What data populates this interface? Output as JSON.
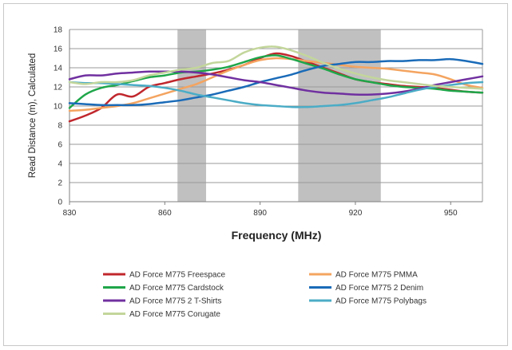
{
  "chart_data": {
    "type": "line",
    "xlabel": "Frequency (MHz)",
    "ylabel": "Read Distance (m), Calculated",
    "xlim": [
      830,
      960
    ],
    "ylim": [
      0,
      18
    ],
    "xticks": [
      830,
      860,
      890,
      920,
      950
    ],
    "yticks": [
      0,
      2,
      4,
      6,
      8,
      10,
      12,
      14,
      16,
      18
    ],
    "grid": "horizontal",
    "legend_position": "bottom",
    "shaded_bands": [
      {
        "x0": 864,
        "x1": 873,
        "color": "#c0c0c0"
      },
      {
        "x0": 902,
        "x1": 928,
        "color": "#c0c0c0"
      }
    ],
    "x": [
      830,
      835,
      840,
      845,
      850,
      855,
      860,
      865,
      870,
      875,
      880,
      885,
      890,
      895,
      900,
      905,
      910,
      915,
      920,
      925,
      930,
      935,
      940,
      945,
      950,
      955,
      960
    ],
    "series": [
      {
        "name": "AD Force M775 Freespace",
        "color": "#c0272d",
        "values": [
          8.4,
          9.0,
          9.8,
          11.2,
          11.0,
          12.0,
          12.4,
          12.8,
          13.1,
          13.4,
          13.8,
          14.3,
          15.0,
          15.5,
          15.2,
          14.6,
          14.0,
          13.4,
          12.8,
          12.5,
          12.3,
          12.1,
          12.0,
          11.9,
          11.7,
          11.5,
          11.4
        ]
      },
      {
        "name": "AD Force M775 PMMA",
        "color": "#f4a460",
        "values": [
          9.5,
          9.6,
          9.8,
          10.0,
          10.3,
          10.8,
          11.3,
          11.8,
          12.3,
          13.0,
          13.7,
          14.3,
          14.8,
          15.0,
          14.9,
          14.7,
          14.5,
          14.3,
          14.1,
          14.0,
          13.9,
          13.7,
          13.5,
          13.3,
          12.8,
          12.2,
          11.9
        ]
      },
      {
        "name": "AD Force M775 Cardstock",
        "color": "#1fa64a",
        "values": [
          9.8,
          11.2,
          11.9,
          12.2,
          12.6,
          13.0,
          13.2,
          13.5,
          13.6,
          13.8,
          14.1,
          14.6,
          15.1,
          15.3,
          14.9,
          14.4,
          13.9,
          13.3,
          12.8,
          12.5,
          12.2,
          12.0,
          11.9,
          11.8,
          11.6,
          11.5,
          11.4
        ]
      },
      {
        "name": "AD Force M775 2 Denim",
        "color": "#1a6bb8",
        "values": [
          10.3,
          10.2,
          10.1,
          10.1,
          10.1,
          10.2,
          10.4,
          10.6,
          10.9,
          11.2,
          11.6,
          12.0,
          12.5,
          12.9,
          13.3,
          13.8,
          14.2,
          14.4,
          14.6,
          14.6,
          14.7,
          14.7,
          14.8,
          14.8,
          14.9,
          14.7,
          14.4
        ]
      },
      {
        "name": "AD Force M775 2 T-Shirts",
        "color": "#7030a0",
        "values": [
          12.8,
          13.2,
          13.2,
          13.4,
          13.5,
          13.6,
          13.6,
          13.6,
          13.5,
          13.3,
          13.0,
          12.7,
          12.5,
          12.2,
          11.9,
          11.6,
          11.4,
          11.3,
          11.2,
          11.2,
          11.3,
          11.5,
          11.8,
          12.2,
          12.5,
          12.8,
          13.1
        ]
      },
      {
        "name": "AD Force M775 Polybags",
        "color": "#4bacc6",
        "values": [
          12.5,
          12.4,
          12.4,
          12.3,
          12.2,
          12.1,
          11.9,
          11.6,
          11.2,
          10.9,
          10.6,
          10.3,
          10.1,
          10.0,
          9.9,
          9.9,
          10.0,
          10.1,
          10.3,
          10.6,
          10.9,
          11.3,
          11.7,
          12.0,
          12.2,
          12.4,
          12.5
        ]
      },
      {
        "name": "AD Force M775 Corugate",
        "color": "#c3d69b",
        "values": [
          12.5,
          12.3,
          12.5,
          12.5,
          12.7,
          13.2,
          13.5,
          13.8,
          14.0,
          14.5,
          14.7,
          15.6,
          16.1,
          16.2,
          15.8,
          15.2,
          14.5,
          13.9,
          13.4,
          13.0,
          12.7,
          12.5,
          12.3,
          12.1,
          12.0,
          11.9,
          11.8
        ]
      }
    ]
  }
}
